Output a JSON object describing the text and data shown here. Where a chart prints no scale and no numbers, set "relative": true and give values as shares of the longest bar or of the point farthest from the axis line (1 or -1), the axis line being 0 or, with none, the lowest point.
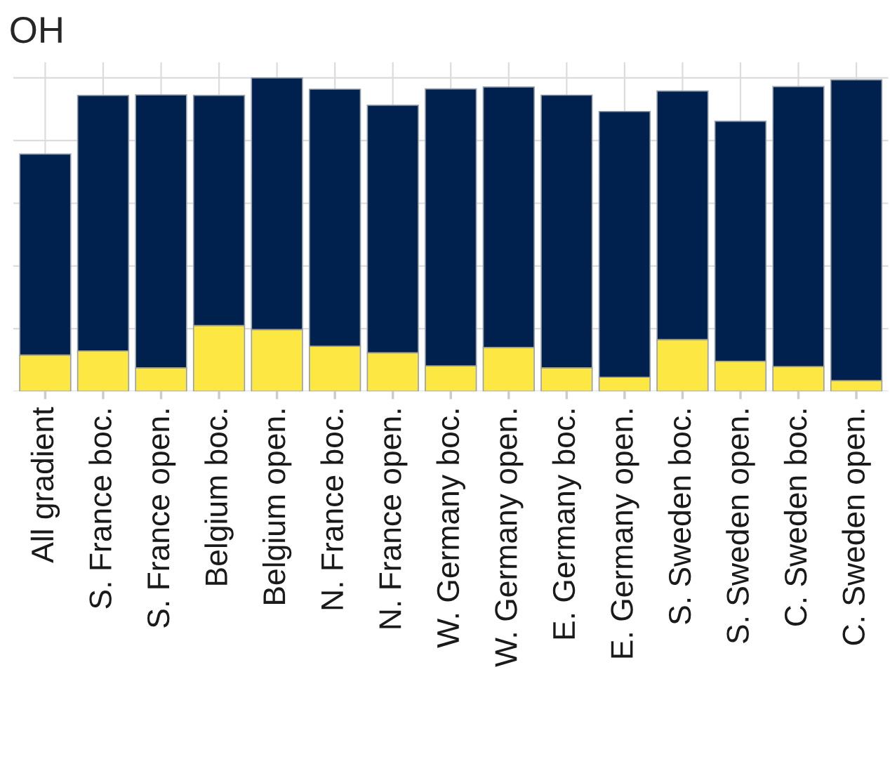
{
  "chart_data": {
    "type": "bar",
    "title": "OH",
    "relative": true,
    "stacked": true,
    "grid": true,
    "categories": [
      "All gradient",
      "S. France boc.",
      "S. France open.",
      "Belgium boc.",
      "Belgium open.",
      "N. France boc.",
      "N. France open.",
      "W. Germany boc.",
      "W. Germany open.",
      "E. Germany boc.",
      "E. Germany open.",
      "S. Sweden boc.",
      "S. Sweden open.",
      "C. Sweden boc.",
      "C. Sweden open."
    ],
    "series": [
      {
        "color": "#fde843",
        "values": [
          0.116,
          0.129,
          0.075,
          0.21,
          0.197,
          0.144,
          0.123,
          0.081,
          0.14,
          0.075,
          0.045,
          0.165,
          0.096,
          0.079,
          0.034
        ]
      },
      {
        "color": "#00204e",
        "values": [
          0.641,
          0.815,
          0.871,
          0.734,
          0.803,
          0.82,
          0.79,
          0.884,
          0.831,
          0.87,
          0.848,
          0.793,
          0.766,
          0.893,
          0.96
        ]
      }
    ]
  }
}
